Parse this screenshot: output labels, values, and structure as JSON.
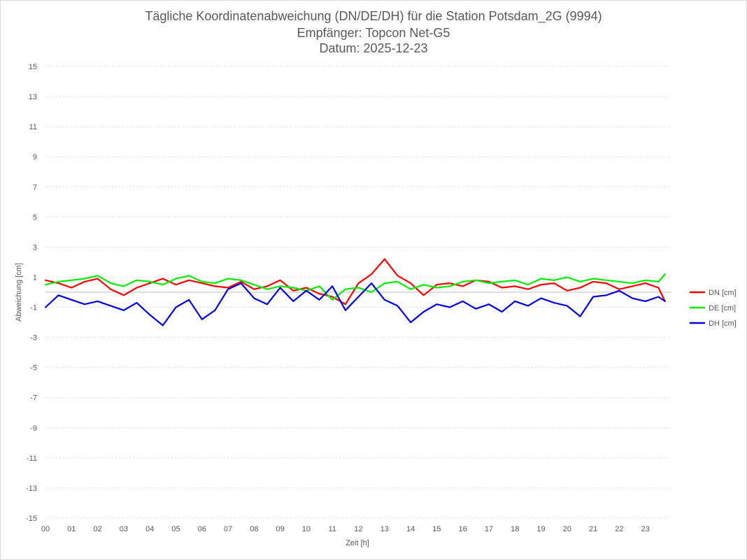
{
  "chart_data": {
    "type": "line",
    "title_lines": [
      "Tägliche Koordinatenabweichung (DN/DE/DH) für die Station Potsdam_2G (9994)",
      "Empfänger: Topcon Net-G5",
      "Datum: 2025-12-23"
    ],
    "xlabel": "Zeit [h]",
    "ylabel": "Abweichung [cm]",
    "xlim": [
      0,
      24
    ],
    "ylim": [
      -15,
      15
    ],
    "x_ticks": [
      "00",
      "01",
      "02",
      "03",
      "04",
      "05",
      "06",
      "07",
      "08",
      "09",
      "10",
      "11",
      "12",
      "13",
      "14",
      "15",
      "16",
      "17",
      "18",
      "19",
      "20",
      "21",
      "22",
      "23"
    ],
    "y_ticks": [
      15,
      13,
      11,
      9,
      7,
      5,
      3,
      1,
      -1,
      -3,
      -5,
      -7,
      -9,
      -11,
      -13,
      -15
    ],
    "grid": true,
    "legend_position": "right",
    "series": [
      {
        "name": "DN [cm]",
        "color": "#ff0000",
        "x": [
          0,
          0.5,
          1,
          1.5,
          2,
          2.5,
          3,
          3.5,
          4,
          4.5,
          5,
          5.5,
          6,
          6.5,
          7,
          7.5,
          8,
          8.5,
          9,
          9.5,
          10,
          10.5,
          11,
          11.5,
          12,
          12.5,
          13,
          13.5,
          14,
          14.5,
          15,
          15.5,
          16,
          16.5,
          17,
          17.5,
          18,
          18.5,
          19,
          19.5,
          20,
          20.5,
          21,
          21.5,
          22,
          22.5,
          23,
          23.5,
          23.75
        ],
        "values": [
          0.8,
          0.6,
          0.3,
          0.7,
          0.9,
          0.2,
          -0.2,
          0.3,
          0.6,
          0.9,
          0.5,
          0.8,
          0.6,
          0.4,
          0.3,
          0.7,
          0.2,
          0.4,
          0.8,
          0.1,
          0.3,
          -0.1,
          -0.3,
          -0.8,
          0.6,
          1.2,
          2.2,
          1.1,
          0.6,
          -0.2,
          0.5,
          0.6,
          0.4,
          0.8,
          0.7,
          0.3,
          0.4,
          0.2,
          0.5,
          0.6,
          0.1,
          0.3,
          0.7,
          0.6,
          0.2,
          0.4,
          0.6,
          0.3,
          -0.6
        ]
      },
      {
        "name": "DE [cm]",
        "color": "#00ee00",
        "x": [
          0,
          0.5,
          1,
          1.5,
          2,
          2.5,
          3,
          3.5,
          4,
          4.5,
          5,
          5.5,
          6,
          6.5,
          7,
          7.5,
          8,
          8.5,
          9,
          9.5,
          10,
          10.5,
          11,
          11.5,
          12,
          12.5,
          13,
          13.5,
          14,
          14.5,
          15,
          15.5,
          16,
          16.5,
          17,
          17.5,
          18,
          18.5,
          19,
          19.5,
          20,
          20.5,
          21,
          21.5,
          22,
          22.5,
          23,
          23.5,
          23.75
        ],
        "values": [
          0.5,
          0.7,
          0.8,
          0.9,
          1.1,
          0.6,
          0.4,
          0.8,
          0.7,
          0.5,
          0.9,
          1.1,
          0.7,
          0.6,
          0.9,
          0.8,
          0.5,
          0.2,
          0.4,
          0.3,
          0.1,
          0.4,
          -0.5,
          0.2,
          0.3,
          0.0,
          0.6,
          0.7,
          0.2,
          0.5,
          0.3,
          0.4,
          0.7,
          0.8,
          0.6,
          0.7,
          0.8,
          0.5,
          0.9,
          0.8,
          1.0,
          0.7,
          0.9,
          0.8,
          0.7,
          0.6,
          0.8,
          0.7,
          1.2
        ]
      },
      {
        "name": "DH [cm]",
        "color": "#0000dd",
        "x": [
          0,
          0.5,
          1,
          1.5,
          2,
          2.5,
          3,
          3.5,
          4,
          4.5,
          5,
          5.5,
          6,
          6.5,
          7,
          7.5,
          8,
          8.5,
          9,
          9.5,
          10,
          10.5,
          11,
          11.5,
          12,
          12.5,
          13,
          13.5,
          14,
          14.5,
          15,
          15.5,
          16,
          16.5,
          17,
          17.5,
          18,
          18.5,
          19,
          19.5,
          20,
          20.5,
          21,
          21.5,
          22,
          22.5,
          23,
          23.5,
          23.75
        ],
        "values": [
          -1.0,
          -0.2,
          -0.5,
          -0.8,
          -0.6,
          -0.9,
          -1.2,
          -0.7,
          -1.5,
          -2.2,
          -1.0,
          -0.5,
          -1.8,
          -1.2,
          0.2,
          0.6,
          -0.4,
          -0.8,
          0.3,
          -0.6,
          0.1,
          -0.5,
          0.4,
          -1.2,
          -0.3,
          0.6,
          -0.5,
          -0.9,
          -2.0,
          -1.3,
          -0.8,
          -1.0,
          -0.6,
          -1.1,
          -0.8,
          -1.3,
          -0.6,
          -0.9,
          -0.4,
          -0.7,
          -0.9,
          -1.6,
          -0.3,
          -0.2,
          0.1,
          -0.4,
          -0.6,
          -0.3,
          -0.6
        ]
      }
    ]
  }
}
